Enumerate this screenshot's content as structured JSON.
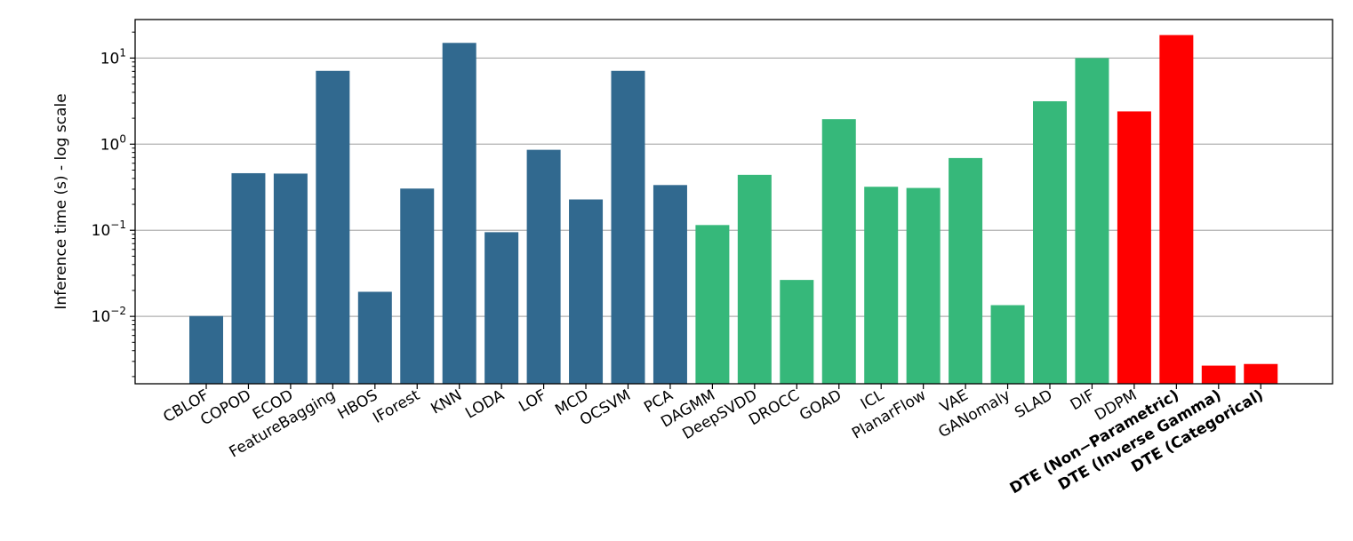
{
  "chart_data": {
    "type": "bar",
    "title": "",
    "xlabel": "",
    "ylabel": "Inference time (s) - log scale",
    "yscale": "log",
    "ylim": [
      0.00165,
      28
    ],
    "yticks": [
      {
        "value": 0.01,
        "base": "10",
        "exp": "−2"
      },
      {
        "value": 0.1,
        "base": "10",
        "exp": "−1"
      },
      {
        "value": 1,
        "base": "10",
        "exp": "0"
      },
      {
        "value": 10,
        "base": "10",
        "exp": "1"
      }
    ],
    "grid": "y-major",
    "colors": {
      "classical": "#31698f",
      "deep": "#36b87a",
      "dte": "#ff0000"
    },
    "categories": [
      "CBLOF",
      "COPOD",
      "ECOD",
      "FeatureBagging",
      "HBOS",
      "IForest",
      "KNN",
      "LODA",
      "LOF",
      "MCD",
      "OCSVM",
      "PCA",
      "DAGMM",
      "DeepSVDD",
      "DROCC",
      "GOAD",
      "ICL",
      "PlanarFlow",
      "VAE",
      "GANomaly",
      "SLAD",
      "DIF",
      "DDPM",
      "DTE (Non−Parametric)",
      "DTE (Inverse Gamma)",
      "DTE (Categorical)"
    ],
    "values": [
      0.0101,
      0.46,
      0.455,
      7.1,
      0.0193,
      0.305,
      15.0,
      0.095,
      0.86,
      0.228,
      7.1,
      0.335,
      0.115,
      0.44,
      0.0265,
      1.95,
      0.32,
      0.31,
      0.69,
      0.0135,
      3.15,
      10.0,
      2.4,
      18.5,
      0.00268,
      0.0028
    ],
    "groups": [
      "classical",
      "classical",
      "classical",
      "classical",
      "classical",
      "classical",
      "classical",
      "classical",
      "classical",
      "classical",
      "classical",
      "classical",
      "deep",
      "deep",
      "deep",
      "deep",
      "deep",
      "deep",
      "deep",
      "deep",
      "deep",
      "deep",
      "dte",
      "dte",
      "dte",
      "dte"
    ],
    "bold_labels": [
      false,
      false,
      false,
      false,
      false,
      false,
      false,
      false,
      false,
      false,
      false,
      false,
      false,
      false,
      false,
      false,
      false,
      false,
      false,
      false,
      false,
      false,
      false,
      true,
      true,
      true
    ]
  }
}
